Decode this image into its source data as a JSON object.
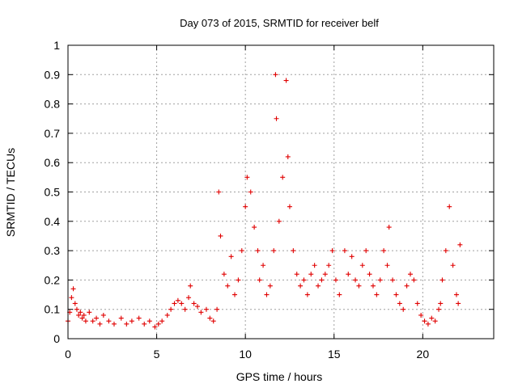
{
  "chart_data": {
    "type": "scatter",
    "title": "Day 073 of 2015, SRMTID for receiver belf",
    "xlabel": "GPS time / hours",
    "ylabel": "SRMTID / TECUs",
    "xlim": [
      0,
      24
    ],
    "ylim": [
      0,
      1
    ],
    "xticks": [
      0,
      5,
      10,
      15,
      20
    ],
    "xtick_labels": [
      "0",
      "5",
      "10",
      "15",
      "20"
    ],
    "yticks": [
      0,
      0.1,
      0.2,
      0.3,
      0.4,
      0.5,
      0.6,
      0.7,
      0.8,
      0.9,
      1
    ],
    "ytick_labels": [
      "0",
      "0.1",
      "0.2",
      "0.3",
      "0.4",
      "0.5",
      "0.6",
      "0.7",
      "0.8",
      "0.9",
      "1"
    ],
    "grid": true,
    "marker": "+",
    "marker_color": "#e00000",
    "series": [
      {
        "name": "SRMTID",
        "x": [
          0.0,
          0.1,
          0.2,
          0.3,
          0.4,
          0.5,
          0.6,
          0.7,
          0.8,
          0.9,
          1.0,
          1.2,
          1.4,
          1.6,
          1.8,
          2.0,
          2.3,
          2.6,
          3.0,
          3.3,
          3.6,
          4.0,
          4.3,
          4.6,
          4.9,
          5.1,
          5.3,
          5.6,
          5.8,
          6.0,
          6.2,
          6.4,
          6.6,
          6.8,
          6.9,
          7.1,
          7.3,
          7.5,
          7.8,
          8.0,
          8.2,
          8.4,
          8.5,
          8.6,
          8.8,
          9.0,
          9.2,
          9.4,
          9.6,
          9.8,
          10.0,
          10.1,
          10.3,
          10.5,
          10.7,
          10.8,
          11.0,
          11.2,
          11.4,
          11.6,
          11.7,
          11.75,
          11.9,
          12.1,
          12.3,
          12.4,
          12.5,
          12.7,
          12.9,
          13.1,
          13.3,
          13.5,
          13.7,
          13.9,
          14.1,
          14.3,
          14.5,
          14.7,
          14.9,
          15.1,
          15.3,
          15.6,
          15.8,
          16.0,
          16.2,
          16.4,
          16.6,
          16.8,
          17.0,
          17.2,
          17.4,
          17.6,
          17.8,
          18.0,
          18.1,
          18.3,
          18.5,
          18.7,
          18.9,
          19.1,
          19.3,
          19.5,
          19.7,
          19.9,
          20.1,
          20.3,
          20.5,
          20.7,
          20.9,
          21.0,
          21.1,
          21.3,
          21.5,
          21.7,
          21.9,
          22.0,
          22.1
        ],
        "y": [
          0.06,
          0.09,
          0.14,
          0.17,
          0.12,
          0.1,
          0.08,
          0.09,
          0.07,
          0.08,
          0.06,
          0.09,
          0.06,
          0.07,
          0.05,
          0.08,
          0.06,
          0.05,
          0.07,
          0.05,
          0.06,
          0.07,
          0.05,
          0.06,
          0.04,
          0.05,
          0.06,
          0.08,
          0.1,
          0.12,
          0.13,
          0.12,
          0.1,
          0.14,
          0.18,
          0.12,
          0.11,
          0.09,
          0.1,
          0.07,
          0.06,
          0.1,
          0.5,
          0.35,
          0.22,
          0.18,
          0.28,
          0.15,
          0.2,
          0.3,
          0.45,
          0.55,
          0.5,
          0.38,
          0.3,
          0.2,
          0.25,
          0.15,
          0.18,
          0.3,
          0.9,
          0.75,
          0.4,
          0.55,
          0.88,
          0.62,
          0.45,
          0.3,
          0.22,
          0.18,
          0.2,
          0.15,
          0.22,
          0.25,
          0.18,
          0.2,
          0.22,
          0.25,
          0.3,
          0.2,
          0.15,
          0.3,
          0.22,
          0.28,
          0.2,
          0.18,
          0.25,
          0.3,
          0.22,
          0.18,
          0.15,
          0.2,
          0.3,
          0.25,
          0.38,
          0.2,
          0.15,
          0.12,
          0.1,
          0.18,
          0.22,
          0.2,
          0.12,
          0.08,
          0.06,
          0.05,
          0.07,
          0.06,
          0.1,
          0.12,
          0.2,
          0.3,
          0.45,
          0.25,
          0.15,
          0.12,
          0.32
        ]
      }
    ]
  }
}
